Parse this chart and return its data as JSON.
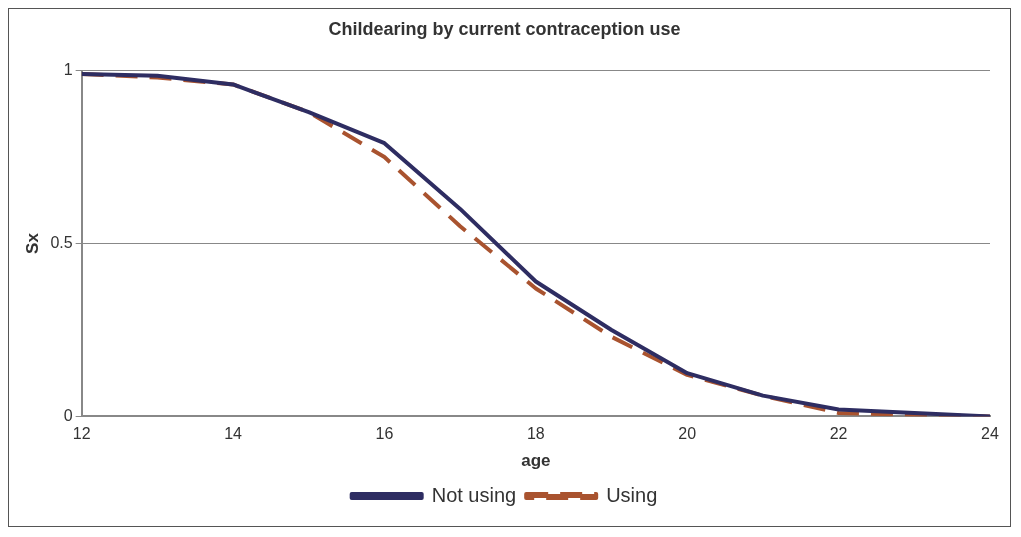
{
  "chart_data": {
    "type": "line",
    "title": "Childearing by current contraception use",
    "xlabel": "age",
    "ylabel": "Sx",
    "x": [
      12,
      13,
      14,
      15,
      16,
      17,
      18,
      19,
      20,
      21,
      22,
      23,
      24
    ],
    "series": [
      {
        "name": "Not using",
        "color": "#2e2d62",
        "line_style": "solid",
        "values": [
          0.99,
          0.985,
          0.96,
          0.88,
          0.79,
          0.6,
          0.39,
          0.25,
          0.125,
          0.06,
          0.02,
          0.01,
          0
        ]
      },
      {
        "name": "Using",
        "color": "#a9532f",
        "line_style": "dashed",
        "values": [
          0.99,
          0.98,
          0.96,
          0.88,
          0.75,
          0.55,
          0.37,
          0.23,
          0.12,
          0.06,
          0.01,
          0.005,
          0
        ]
      }
    ],
    "xlim": [
      12,
      24
    ],
    "xticks": [
      12,
      14,
      16,
      18,
      20,
      22,
      24
    ],
    "ylim": [
      0,
      1
    ],
    "yticks": [
      0,
      0.5,
      1
    ],
    "grid": "y",
    "legend": "bottom",
    "marker": "none"
  }
}
